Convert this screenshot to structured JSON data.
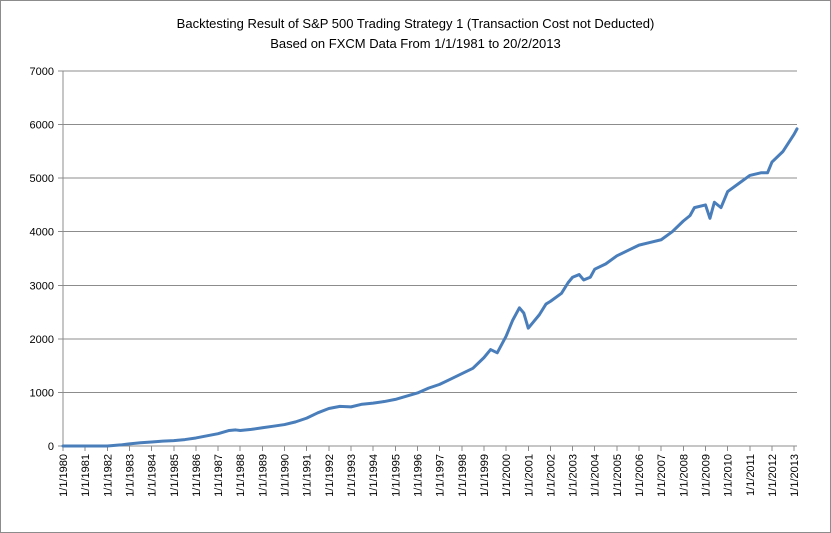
{
  "chart_data": {
    "type": "line",
    "title_lines": [
      "Backtesting Result of S&P 500  Trading Strategy 1 (Transaction Cost not Deducted)",
      "Based on FXCM Data From 1/1/1981  to 20/2/2013"
    ],
    "xlabel": "",
    "ylabel": "",
    "ylim": [
      0,
      7000
    ],
    "yticks": [
      0,
      1000,
      2000,
      3000,
      4000,
      5000,
      6000,
      7000
    ],
    "xlim": [
      1980.0,
      2013.13
    ],
    "xticks": [
      {
        "value": 1980,
        "label": "1/1/1980"
      },
      {
        "value": 1981,
        "label": "1/1/1981"
      },
      {
        "value": 1982,
        "label": "1/1/1982"
      },
      {
        "value": 1983,
        "label": "1/1/1983"
      },
      {
        "value": 1984,
        "label": "1/1/1984"
      },
      {
        "value": 1985,
        "label": "1/1/1985"
      },
      {
        "value": 1986,
        "label": "1/1/1986"
      },
      {
        "value": 1987,
        "label": "1/1/1987"
      },
      {
        "value": 1988,
        "label": "1/1/1988"
      },
      {
        "value": 1989,
        "label": "1/1/1989"
      },
      {
        "value": 1990,
        "label": "1/1/1990"
      },
      {
        "value": 1991,
        "label": "1/1/1991"
      },
      {
        "value": 1992,
        "label": "1/1/1992"
      },
      {
        "value": 1993,
        "label": "1/1/1993"
      },
      {
        "value": 1994,
        "label": "1/1/1994"
      },
      {
        "value": 1995,
        "label": "1/1/1995"
      },
      {
        "value": 1996,
        "label": "1/1/1996"
      },
      {
        "value": 1997,
        "label": "1/1/1997"
      },
      {
        "value": 1998,
        "label": "1/1/1998"
      },
      {
        "value": 1999,
        "label": "1/1/1999"
      },
      {
        "value": 2000,
        "label": "1/1/2000"
      },
      {
        "value": 2001,
        "label": "1/1/2001"
      },
      {
        "value": 2002,
        "label": "1/1/2002"
      },
      {
        "value": 2003,
        "label": "1/1/2003"
      },
      {
        "value": 2004,
        "label": "1/1/2004"
      },
      {
        "value": 2005,
        "label": "1/1/2005"
      },
      {
        "value": 2006,
        "label": "1/1/2006"
      },
      {
        "value": 2007,
        "label": "1/1/2007"
      },
      {
        "value": 2008,
        "label": "1/1/2008"
      },
      {
        "value": 2009,
        "label": "1/1/2009"
      },
      {
        "value": 2010,
        "label": "1/1/2010"
      },
      {
        "value": 2011,
        "label": "1/1/2011"
      },
      {
        "value": 2012,
        "label": "1/1/2012"
      },
      {
        "value": 2013,
        "label": "1/1/2013"
      }
    ],
    "grid": true,
    "legend": "none",
    "series": [
      {
        "color": "#4a7ebb",
        "points": [
          [
            1980.0,
            0
          ],
          [
            1981.0,
            0
          ],
          [
            1982.0,
            0
          ],
          [
            1982.6,
            20
          ],
          [
            1983.0,
            40
          ],
          [
            1983.5,
            60
          ],
          [
            1984.0,
            75
          ],
          [
            1984.5,
            90
          ],
          [
            1985.0,
            100
          ],
          [
            1985.5,
            120
          ],
          [
            1986.0,
            150
          ],
          [
            1986.5,
            190
          ],
          [
            1987.0,
            230
          ],
          [
            1987.5,
            290
          ],
          [
            1987.8,
            300
          ],
          [
            1988.0,
            290
          ],
          [
            1988.5,
            310
          ],
          [
            1989.0,
            340
          ],
          [
            1989.5,
            370
          ],
          [
            1990.0,
            400
          ],
          [
            1990.5,
            450
          ],
          [
            1991.0,
            520
          ],
          [
            1991.5,
            620
          ],
          [
            1992.0,
            700
          ],
          [
            1992.5,
            740
          ],
          [
            1993.0,
            730
          ],
          [
            1993.5,
            780
          ],
          [
            1994.0,
            800
          ],
          [
            1994.5,
            830
          ],
          [
            1995.0,
            870
          ],
          [
            1995.5,
            930
          ],
          [
            1996.0,
            990
          ],
          [
            1996.5,
            1080
          ],
          [
            1997.0,
            1150
          ],
          [
            1997.5,
            1250
          ],
          [
            1998.0,
            1350
          ],
          [
            1998.5,
            1450
          ],
          [
            1999.0,
            1650
          ],
          [
            1999.3,
            1800
          ],
          [
            1999.6,
            1740
          ],
          [
            2000.0,
            2050
          ],
          [
            2000.3,
            2350
          ],
          [
            2000.6,
            2580
          ],
          [
            2000.8,
            2480
          ],
          [
            2001.0,
            2200
          ],
          [
            2001.2,
            2300
          ],
          [
            2001.5,
            2450
          ],
          [
            2001.8,
            2650
          ],
          [
            2002.0,
            2700
          ],
          [
            2002.5,
            2850
          ],
          [
            2002.8,
            3050
          ],
          [
            2003.0,
            3150
          ],
          [
            2003.3,
            3200
          ],
          [
            2003.5,
            3100
          ],
          [
            2003.8,
            3150
          ],
          [
            2004.0,
            3300
          ],
          [
            2004.5,
            3400
          ],
          [
            2005.0,
            3550
          ],
          [
            2005.5,
            3650
          ],
          [
            2006.0,
            3750
          ],
          [
            2006.5,
            3800
          ],
          [
            2007.0,
            3850
          ],
          [
            2007.5,
            4000
          ],
          [
            2008.0,
            4200
          ],
          [
            2008.3,
            4300
          ],
          [
            2008.5,
            4450
          ],
          [
            2009.0,
            4500
          ],
          [
            2009.2,
            4250
          ],
          [
            2009.4,
            4550
          ],
          [
            2009.7,
            4450
          ],
          [
            2010.0,
            4750
          ],
          [
            2010.5,
            4900
          ],
          [
            2011.0,
            5050
          ],
          [
            2011.5,
            5100
          ],
          [
            2011.8,
            5100
          ],
          [
            2012.0,
            5300
          ],
          [
            2012.5,
            5500
          ],
          [
            2013.0,
            5820
          ],
          [
            2013.13,
            5920
          ]
        ]
      }
    ]
  }
}
